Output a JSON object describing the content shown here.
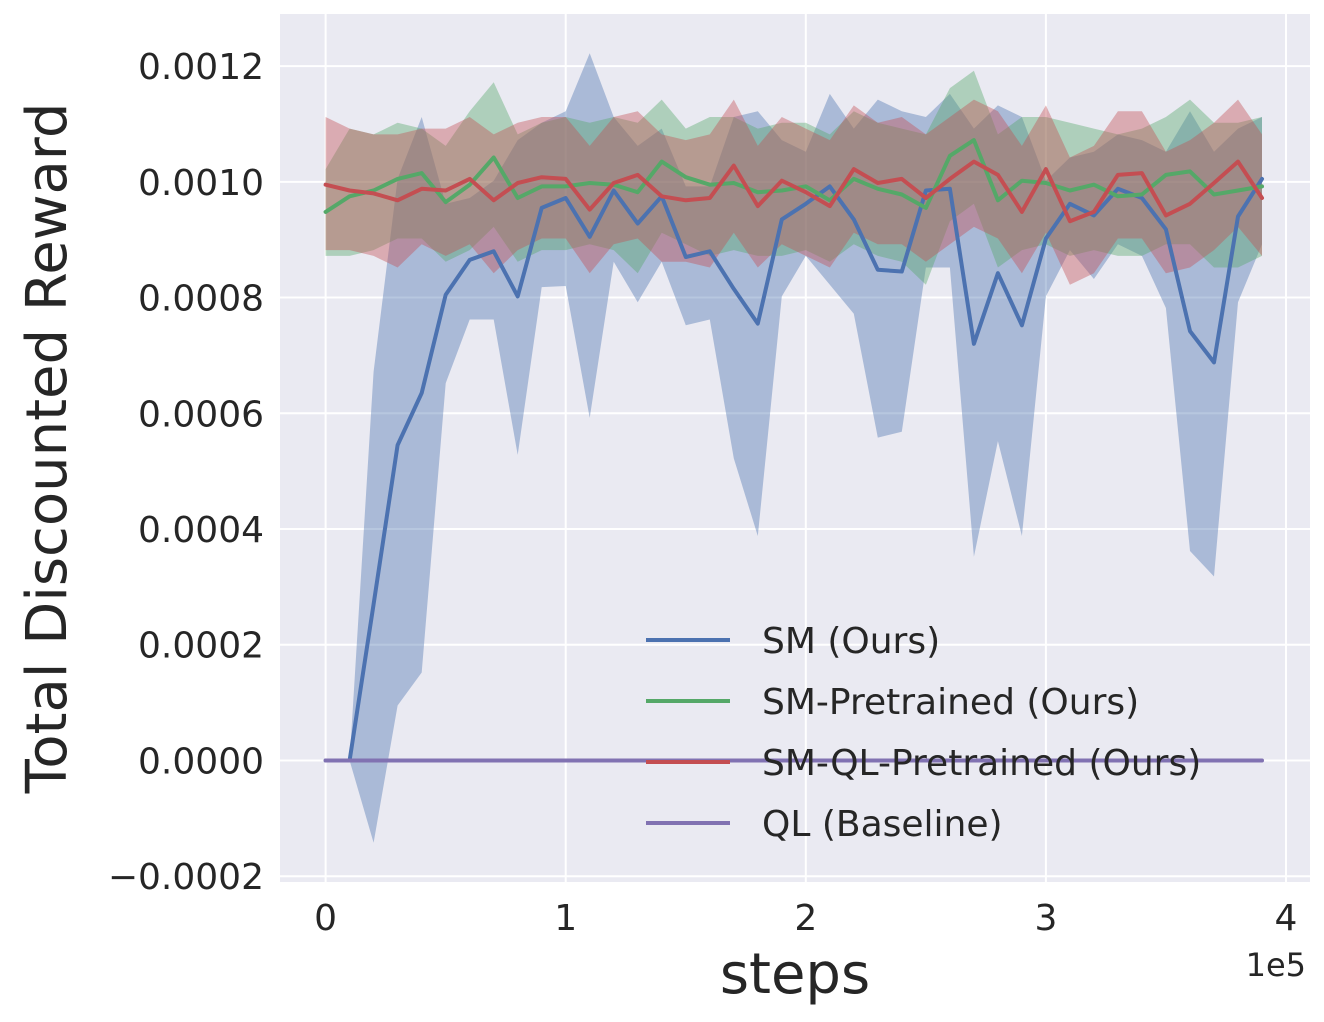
{
  "chart_data": {
    "type": "line",
    "xlabel": "steps",
    "ylabel": "Total Discounted Reward",
    "x_offset_label": "1e5",
    "xlim": [
      -0.19,
      4.1
    ],
    "ylim": [
      -0.00021,
      0.00129
    ],
    "grid": true,
    "legend_position": "lower-right",
    "x_ticks": [
      0,
      1,
      2,
      3,
      4
    ],
    "x_tick_labels": [
      "0",
      "1",
      "2",
      "3",
      "4"
    ],
    "y_ticks": [
      -0.0002,
      0.0,
      0.0002,
      0.0004,
      0.0006,
      0.0008,
      0.001,
      0.0012
    ],
    "y_tick_labels": [
      "−0.0002",
      "0.0000",
      "0.0002",
      "0.0004",
      "0.0006",
      "0.0008",
      "0.0010",
      "0.0012"
    ],
    "x": [
      0,
      0.1,
      0.2,
      0.3,
      0.4,
      0.5,
      0.6,
      0.7,
      0.8,
      0.9,
      1.0,
      1.1,
      1.2,
      1.3,
      1.4,
      1.5,
      1.6,
      1.7,
      1.8,
      1.9,
      2.0,
      2.1,
      2.2,
      2.3,
      2.4,
      2.5,
      2.6,
      2.7,
      2.8,
      2.9,
      3.0,
      3.1,
      3.2,
      3.3,
      3.4,
      3.5,
      3.6,
      3.7,
      3.8,
      3.9
    ],
    "series": [
      {
        "name": "SM (Ours)",
        "color": "#4c72b0",
        "values": [
          0,
          0,
          0.00027,
          0.000545,
          0.000635,
          0.000805,
          0.000865,
          0.00088,
          0.000802,
          0.000955,
          0.000972,
          0.000905,
          0.000985,
          0.000928,
          0.000975,
          0.00087,
          0.00088,
          0.000815,
          0.000755,
          0.000935,
          0.000962,
          0.000992,
          0.000935,
          0.000848,
          0.000845,
          0.000985,
          0.000988,
          0.00072,
          0.000842,
          0.000752,
          0.000902,
          0.000962,
          0.000942,
          0.000988,
          0.000972,
          0.000918,
          0.000742,
          0.000688,
          0.00094,
          0.001005
        ],
        "lower": [
          0,
          0,
          -0.000142,
          9.5e-05,
          0.000152,
          0.000652,
          0.000762,
          0.000762,
          0.000528,
          0.000818,
          0.00082,
          0.000592,
          0.000862,
          0.000792,
          0.000862,
          0.000752,
          0.000762,
          0.000522,
          0.000388,
          0.000802,
          0.000872,
          0.000822,
          0.000772,
          0.000558,
          0.000568,
          0.000852,
          0.000852,
          0.000352,
          0.000552,
          0.000388,
          0.000802,
          0.000882,
          0.000832,
          0.000892,
          0.000872,
          0.000782,
          0.000362,
          0.000318,
          0.000792,
          0.000892
        ],
        "upper": [
          0,
          0,
          0.000672,
          0.001005,
          0.001112,
          0.000962,
          0.000972,
          0.001002,
          0.001072,
          0.001102,
          0.001122,
          0.001222,
          0.001112,
          0.001062,
          0.001092,
          0.000992,
          0.000992,
          0.001112,
          0.001122,
          0.001072,
          0.001052,
          0.001152,
          0.001092,
          0.001142,
          0.001122,
          0.001112,
          0.001152,
          0.001092,
          0.001132,
          0.001112,
          0.001002,
          0.001042,
          0.001052,
          0.001082,
          0.001072,
          0.001052,
          0.001122,
          0.001052,
          0.001092,
          0.001112
        ]
      },
      {
        "name": "SM-Pretrained (Ours)",
        "color": "#55a868",
        "values": [
          0.000948,
          0.000975,
          0.000985,
          0.001005,
          0.001015,
          0.000965,
          0.000995,
          0.001042,
          0.000972,
          0.000992,
          0.000992,
          0.000998,
          0.000995,
          0.000982,
          0.001035,
          0.001008,
          0.000995,
          0.000998,
          0.000982,
          0.000985,
          0.000992,
          0.000968,
          0.001005,
          0.000988,
          0.000978,
          0.000955,
          0.001045,
          0.001072,
          0.000968,
          0.001002,
          0.000998,
          0.000985,
          0.000995,
          0.000975,
          0.000978,
          0.001012,
          0.001018,
          0.000978,
          0.000985,
          0.000992
        ],
        "lower": [
          0.000872,
          0.000872,
          0.000882,
          0.000902,
          0.000902,
          0.000862,
          0.000882,
          0.000922,
          0.000862,
          0.000882,
          0.000882,
          0.000892,
          0.000882,
          0.000842,
          0.000912,
          0.000892,
          0.000872,
          0.000882,
          0.000872,
          0.000872,
          0.000882,
          0.000862,
          0.000892,
          0.000872,
          0.000862,
          0.000822,
          0.000932,
          0.000962,
          0.000852,
          0.000882,
          0.000892,
          0.000872,
          0.000882,
          0.000872,
          0.000872,
          0.000892,
          0.000892,
          0.000852,
          0.000852,
          0.000872
        ],
        "upper": [
          0.001022,
          0.001092,
          0.001082,
          0.001102,
          0.001092,
          0.001062,
          0.001122,
          0.001172,
          0.001082,
          0.001102,
          0.001112,
          0.001102,
          0.001112,
          0.001102,
          0.001142,
          0.001092,
          0.001112,
          0.001112,
          0.001092,
          0.001102,
          0.001102,
          0.001082,
          0.001122,
          0.001102,
          0.001092,
          0.001082,
          0.001162,
          0.001192,
          0.001082,
          0.001112,
          0.001112,
          0.001102,
          0.001092,
          0.001082,
          0.001092,
          0.001112,
          0.001142,
          0.001102,
          0.001102,
          0.001112
        ]
      },
      {
        "name": "SM-QL-Pretrained (Ours)",
        "color": "#c44e52",
        "values": [
          0.000995,
          0.000985,
          0.00098,
          0.000968,
          0.000988,
          0.000985,
          0.001005,
          0.000968,
          0.000998,
          0.001008,
          0.001005,
          0.000952,
          0.000998,
          0.001012,
          0.000975,
          0.000968,
          0.000972,
          0.001028,
          0.000958,
          0.001002,
          0.000982,
          0.000958,
          0.001022,
          0.000998,
          0.001005,
          0.000972,
          0.001005,
          0.001035,
          0.001012,
          0.000948,
          0.001022,
          0.000932,
          0.000948,
          0.001012,
          0.001015,
          0.000942,
          0.000962,
          0.000998,
          0.001035,
          0.000972
        ],
        "lower": [
          0.000882,
          0.000882,
          0.000872,
          0.000852,
          0.000892,
          0.000872,
          0.000892,
          0.000842,
          0.000882,
          0.000902,
          0.000902,
          0.000842,
          0.000892,
          0.000902,
          0.000862,
          0.000862,
          0.000852,
          0.000912,
          0.000852,
          0.000892,
          0.000872,
          0.000852,
          0.000912,
          0.000892,
          0.000892,
          0.000862,
          0.000892,
          0.000922,
          0.000902,
          0.000842,
          0.000912,
          0.000822,
          0.000842,
          0.000902,
          0.000902,
          0.000842,
          0.000852,
          0.000882,
          0.000922,
          0.000872
        ],
        "upper": [
          0.001112,
          0.001092,
          0.001082,
          0.001082,
          0.001092,
          0.001092,
          0.001112,
          0.001082,
          0.001102,
          0.001112,
          0.001112,
          0.001062,
          0.001112,
          0.001122,
          0.001082,
          0.001072,
          0.001082,
          0.001142,
          0.001062,
          0.001112,
          0.001092,
          0.001072,
          0.001132,
          0.001102,
          0.001112,
          0.001082,
          0.001112,
          0.001142,
          0.001122,
          0.001062,
          0.001132,
          0.001042,
          0.001062,
          0.001122,
          0.001122,
          0.001052,
          0.001072,
          0.001102,
          0.001142,
          0.001082
        ]
      },
      {
        "name": "QL (Baseline)",
        "color": "#8172b2",
        "values": [
          0,
          0,
          0,
          0,
          0,
          0,
          0,
          0,
          0,
          0,
          0,
          0,
          0,
          0,
          0,
          0,
          0,
          0,
          0,
          0,
          0,
          0,
          0,
          0,
          0,
          0,
          0,
          0,
          0,
          0,
          0,
          0,
          0,
          0,
          0,
          0,
          0,
          0,
          0,
          0
        ]
      }
    ]
  }
}
